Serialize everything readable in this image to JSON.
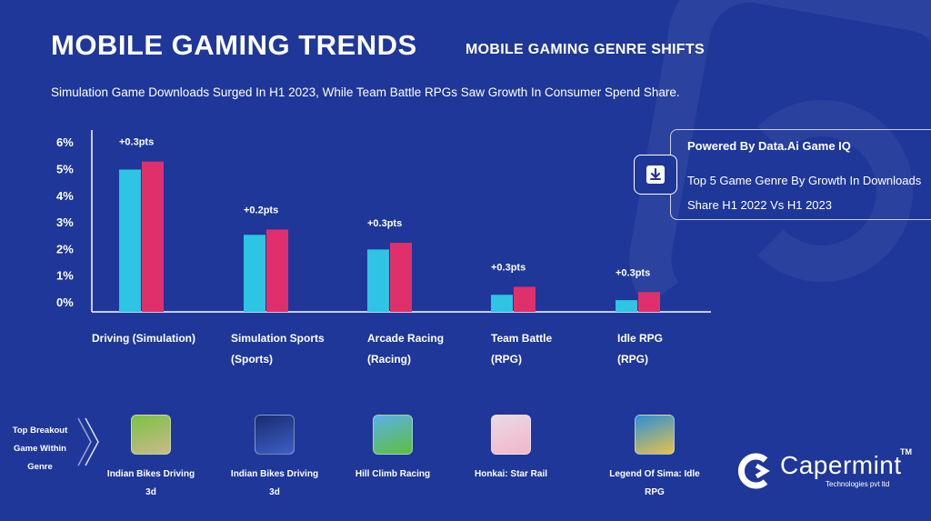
{
  "header": {
    "title": "MOBILE GAMING TRENDS",
    "subtitle": "MOBILE GAMING GENRE SHIFTS",
    "description": "Simulation Game Downloads Surged In H1 2023, While Team Battle RPGs Saw Growth In Consumer Spend Share."
  },
  "info_box": {
    "title": "Powered By Data.Ai Game IQ",
    "text": "Top 5 Game Genre By Growth In Downloads Share H1 2022 Vs H1 2023",
    "icon": "download-icon"
  },
  "chart_data": {
    "type": "bar",
    "categories": [
      [
        "Driving (Simulation)",
        ""
      ],
      [
        "Simulation Sports",
        "(Sports)"
      ],
      [
        "Arcade Racing",
        "(Racing)"
      ],
      [
        "Team Battle",
        "(RPG)"
      ],
      [
        "Idle RPG",
        "(RPG)"
      ]
    ],
    "series": [
      {
        "values": [
          5.0,
          2.55,
          2.0,
          0.3,
          0.1
        ],
        "color": "#2ec4e4"
      },
      {
        "values": [
          5.3,
          2.75,
          2.25,
          0.6,
          0.4
        ],
        "color": "#e0306c"
      }
    ],
    "annotations": [
      "+0.3pts",
      "+0.2pts",
      "+0.3pts",
      "+0.3pts",
      "+0.3pts"
    ],
    "y_ticks": [
      "0%",
      "1%",
      "2%",
      "3%",
      "4%",
      "5%",
      "6%"
    ],
    "ylim": [
      0,
      6
    ],
    "grid": false
  },
  "breakout": {
    "label": "Top Breakout Game Within Genre",
    "games": [
      {
        "name": "Indian Bikes Driving 3d",
        "icon": "indian-bikes-game-icon",
        "colors": [
          "#7cc243",
          "#c9b98c"
        ]
      },
      {
        "name": "Indian Bikes Driving 3d",
        "icon": "fifa-game-icon",
        "colors": [
          "#1a2c6e",
          "#3c5fc8"
        ]
      },
      {
        "name": "Hill Climb Racing",
        "icon": "hill-climb-game-icon",
        "colors": [
          "#58b1e8",
          "#5fbf3a"
        ]
      },
      {
        "name": "Honkai: Star Rail",
        "icon": "honkai-game-icon",
        "colors": [
          "#e9d9e6",
          "#f2b6c9"
        ]
      },
      {
        "name": "Legend Of Sima: Idle RPG",
        "icon": "legend-of-sima-game-icon",
        "colors": [
          "#2b8fd6",
          "#e9c24a"
        ]
      }
    ]
  },
  "logo": {
    "name": "Capermint",
    "tm": "TM",
    "tagline": "Technologies pvt ltd"
  }
}
